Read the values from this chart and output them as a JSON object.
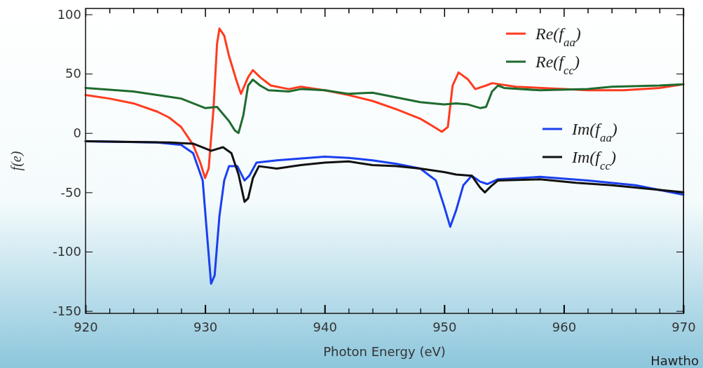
{
  "chart_data": {
    "type": "line",
    "xlabel": "Photon Energy (eV)",
    "ylabel": "f(e)",
    "xlim": [
      920,
      970
    ],
    "ylim": [
      -152,
      105
    ],
    "xticks": [
      920,
      {
        "value": 922,
        "label": null
      },
      {
        "value": 924,
        "label": null
      },
      {
        "value": 926,
        "label": null
      },
      {
        "value": 928,
        "label": null
      },
      930,
      {
        "value": 932,
        "label": null
      },
      {
        "value": 934,
        "label": null
      },
      {
        "value": 936,
        "label": null
      },
      {
        "value": 938,
        "label": null
      },
      940,
      {
        "value": 942,
        "label": null
      },
      {
        "value": 944,
        "label": null
      },
      {
        "value": 946,
        "label": null
      },
      {
        "value": 948,
        "label": null
      },
      950,
      {
        "value": 952,
        "label": null
      },
      {
        "value": 954,
        "label": null
      },
      {
        "value": 956,
        "label": null
      },
      {
        "value": 958,
        "label": null
      },
      960,
      {
        "value": 962,
        "label": null
      },
      {
        "value": 964,
        "label": null
      },
      {
        "value": 966,
        "label": null
      },
      {
        "value": 968,
        "label": null
      },
      970
    ],
    "yticks": [
      -150,
      -100,
      -50,
      0,
      50,
      100
    ],
    "grid": false,
    "legend": "top right",
    "line_style": "solid",
    "marker": "none",
    "annotations": [
      "Hawtho"
    ],
    "series": [
      {
        "name": "Re(f$_{aa}$)",
        "color": "#ff3b1f",
        "x": [
          920,
          922,
          924,
          926,
          927,
          928,
          929,
          929.6,
          930,
          930.3,
          930.7,
          931,
          931.2,
          931.6,
          932,
          932.6,
          933,
          933.6,
          934,
          934.6,
          935.5,
          937,
          938,
          940,
          942,
          944,
          946,
          948,
          949,
          949.8,
          950.3,
          950.7,
          951.2,
          952,
          952.6,
          953.5,
          954,
          956,
          960,
          962,
          965,
          968,
          970
        ],
        "values": [
          32,
          29,
          25,
          18,
          13,
          5,
          -10,
          -25,
          -38,
          -30,
          20,
          75,
          88,
          82,
          65,
          45,
          33,
          47,
          53,
          47,
          40,
          37,
          39,
          36,
          32,
          27,
          20,
          12,
          6,
          1,
          5,
          40,
          51,
          45,
          37,
          40,
          42,
          39,
          37,
          36,
          36,
          38,
          41
        ]
      },
      {
        "name": "Re(f$_{cc}$)",
        "color": "#1e6b2e",
        "x": [
          920,
          924,
          928,
          930,
          931,
          932,
          932.5,
          932.8,
          933.2,
          933.6,
          934,
          934.6,
          935.3,
          937,
          938,
          940,
          942,
          944,
          946,
          948,
          950,
          951,
          952,
          953,
          953.5,
          954,
          954.5,
          955,
          958,
          962,
          964,
          968,
          970
        ],
        "values": [
          38,
          35,
          29,
          21,
          22,
          10,
          2,
          0,
          15,
          40,
          45,
          40,
          36,
          35,
          37,
          36,
          33,
          34,
          30,
          26,
          24,
          25,
          24,
          21,
          22,
          35,
          40,
          38,
          36,
          37,
          39,
          40,
          41
        ]
      },
      {
        "name": "Im(f$_{aa}$)",
        "color": "#1a3ff0",
        "x": [
          920,
          926,
          928,
          929,
          929.8,
          930.2,
          930.5,
          930.8,
          931.2,
          931.6,
          932,
          932.7,
          933.3,
          933.7,
          934.3,
          936,
          940,
          942,
          944,
          946,
          948,
          949.3,
          950,
          950.5,
          951,
          951.6,
          952.3,
          953,
          953.6,
          954.5,
          958,
          962,
          966,
          968,
          970
        ],
        "values": [
          -7,
          -8,
          -10,
          -17,
          -40,
          -90,
          -127,
          -120,
          -70,
          -40,
          -28,
          -28,
          -40,
          -36,
          -25,
          -23,
          -20,
          -21,
          -23,
          -26,
          -30,
          -40,
          -62,
          -79,
          -65,
          -44,
          -36,
          -41,
          -43,
          -39,
          -37,
          -40,
          -44,
          -48,
          -52
        ]
      },
      {
        "name": "Im(f$_{cc}$)",
        "color": "#111111",
        "x": [
          920,
          927,
          929,
          930,
          930.5,
          931.5,
          932.2,
          932.8,
          933.3,
          933.6,
          934,
          934.5,
          936,
          938,
          940,
          942,
          944,
          946,
          948,
          950,
          951,
          952.3,
          953,
          953.4,
          953.9,
          954.5,
          958,
          961,
          964,
          967,
          970
        ],
        "values": [
          -7,
          -8,
          -9,
          -13,
          -15,
          -12,
          -17,
          -35,
          -58,
          -55,
          -38,
          -28,
          -30,
          -27,
          -25,
          -24,
          -27,
          -28,
          -30,
          -33,
          -35,
          -36,
          -46,
          -50,
          -45,
          -40,
          -39,
          -42,
          -44,
          -47,
          -50
        ]
      }
    ]
  }
}
